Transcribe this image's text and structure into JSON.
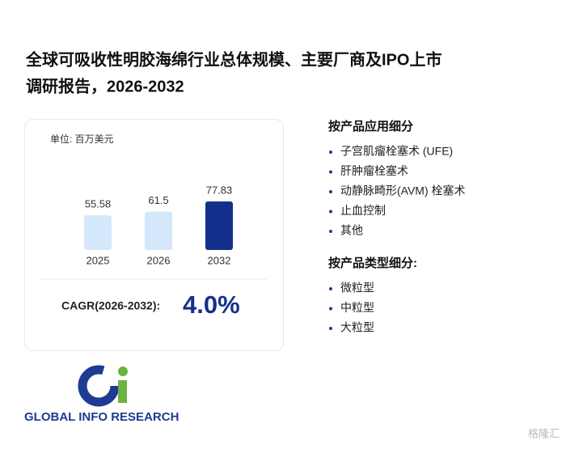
{
  "title_lines": [
    "全球可吸收性明胶海绵行业总体规模、主要厂商及IPO上市",
    "调研报告，2026-2032"
  ],
  "chart_data": {
    "type": "bar",
    "unit": "单位: 百万美元",
    "categories": [
      "2025",
      "2026",
      "2032"
    ],
    "values": [
      55.58,
      61.5,
      77.83
    ],
    "colors": [
      "#d5e7fa",
      "#d5e7fa",
      "#13308c"
    ],
    "cagr_label": "CAGR(2026-2032):",
    "cagr_value": "4.0%"
  },
  "application_section": {
    "heading": "按产品应用细分",
    "items": [
      "子宫肌瘤栓塞术 (UFE)",
      "肝肿瘤栓塞术",
      "动静脉畸形(AVM) 栓塞术",
      "止血控制",
      "其他"
    ]
  },
  "type_section": {
    "heading": "按产品类型细分:",
    "items": [
      "微粒型",
      "中粒型",
      "大粒型"
    ]
  },
  "logo_text": "GLOBAL INFO RESEARCH",
  "source_watermark": "格隆汇"
}
